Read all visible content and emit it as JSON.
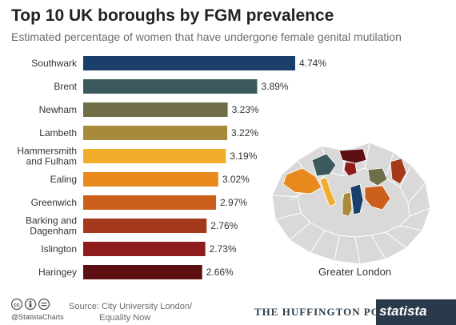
{
  "title": "Top 10 UK boroughs by FGM prevalence",
  "subtitle": "Estimated percentage of women that have undergone female genital mutilation",
  "map_caption": "Greater London",
  "footer": {
    "handle": "@StatistaCharts",
    "source_line1": "Source: City University London/",
    "source_line2": "Equality Now",
    "partner": "THE HUFFINGTON POST",
    "brand": "statista"
  },
  "chart_data": {
    "type": "bar",
    "orientation": "horizontal",
    "categories": [
      [
        "Southwark"
      ],
      [
        "Brent"
      ],
      [
        "Newham"
      ],
      [
        "Lambeth"
      ],
      [
        "Hammersmith",
        "and Fulham"
      ],
      [
        "Ealing"
      ],
      [
        "Greenwich"
      ],
      [
        "Barking and",
        "Dagenham"
      ],
      [
        "Islington"
      ],
      [
        "Haringey"
      ]
    ],
    "values": [
      4.74,
      3.89,
      3.23,
      3.22,
      3.19,
      3.02,
      2.97,
      2.76,
      2.73,
      2.66
    ],
    "value_labels": [
      "4.74%",
      "3.89%",
      "3.23%",
      "3.22%",
      "3.19%",
      "3.02%",
      "2.97%",
      "2.76%",
      "2.73%",
      "2.66%"
    ],
    "colors": [
      "#1a3f6b",
      "#3c5a5e",
      "#6f6e46",
      "#a88a3c",
      "#f0ad2c",
      "#e8891e",
      "#cc5f1c",
      "#a43a1b",
      "#8c1d1c",
      "#5e0f12"
    ],
    "xlim": [
      0,
      4.74
    ],
    "grid": false,
    "legend": "none"
  },
  "map": {
    "base_color": "#d9d9d9",
    "border_color": "#ffffff",
    "highlight_colors": {
      "southwark": "#1a3f6b",
      "brent": "#3c5a5e",
      "newham": "#6f6e46",
      "lambeth": "#a88a3c",
      "hammersmith": "#f0ad2c",
      "ealing": "#e8891e",
      "greenwich": "#cc5f1c",
      "barking": "#a43a1b",
      "islington": "#8c1d1c",
      "haringey": "#5e0f12"
    }
  }
}
